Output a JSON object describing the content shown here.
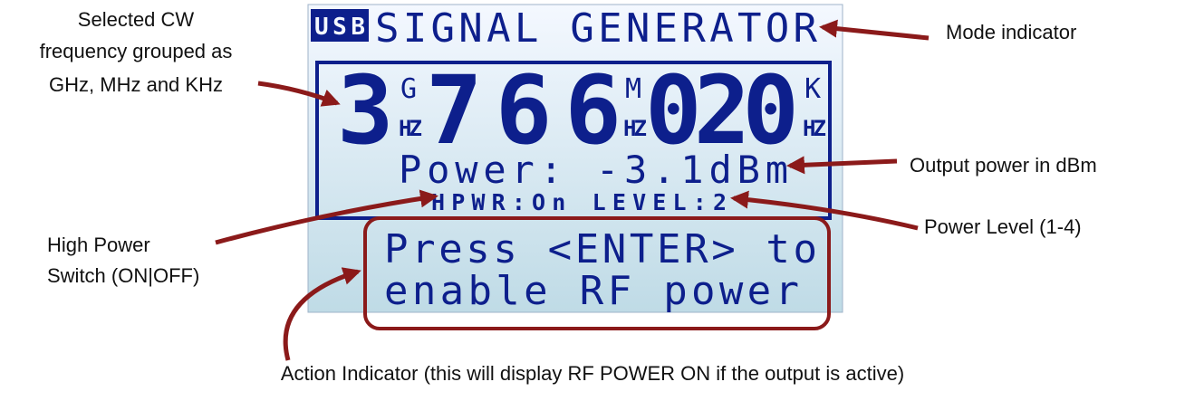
{
  "lcd": {
    "mode_badge": "USB",
    "mode": "SIGNAL GENERATOR",
    "frequency": {
      "ghz": "3",
      "ghz_unit_top": "G",
      "ghz_unit_bottom": "HZ",
      "mhz": "766",
      "mhz_unit_top": "M",
      "mhz_unit_bottom": "HZ",
      "khz": "020",
      "khz_unit_top": "K",
      "khz_unit_bottom": "HZ"
    },
    "power": "Power: -3.1dBm",
    "status": "HPWR:On LEVEL:2",
    "action_lines": [
      "Press <ENTER> to",
      "enable RF power"
    ]
  },
  "annotations": {
    "frequency": [
      "Selected CW",
      "frequency grouped as",
      "GHz, MHz and KHz"
    ],
    "mode": "Mode indicator",
    "output_power": "Output power in dBm",
    "power_level": "Power Level (1-4)",
    "high_power": [
      "High Power",
      "Switch (ON|OFF)"
    ],
    "action": "Action Indicator (this will display RF POWER ON if the output is active)"
  }
}
